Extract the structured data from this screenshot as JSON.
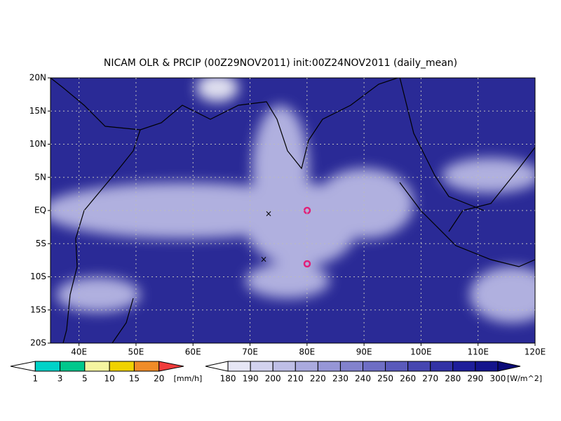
{
  "title": "NICAM OLR & PRCIP (00Z29NOV2011) init:00Z24NOV2011 (daily_mean)",
  "map": {
    "xlim": [
      35,
      120
    ],
    "ylim": [
      -20,
      20
    ],
    "xticks": [
      {
        "value": 40,
        "label": "40E"
      },
      {
        "value": 50,
        "label": "50E"
      },
      {
        "value": 60,
        "label": "60E"
      },
      {
        "value": 70,
        "label": "70E"
      },
      {
        "value": 80,
        "label": "80E"
      },
      {
        "value": 90,
        "label": "90E"
      },
      {
        "value": 100,
        "label": "100E"
      },
      {
        "value": 110,
        "label": "110E"
      },
      {
        "value": 120,
        "label": "120E"
      }
    ],
    "yticks": [
      {
        "value": 20,
        "label": "20N"
      },
      {
        "value": 15,
        "label": "15N"
      },
      {
        "value": 10,
        "label": "10N"
      },
      {
        "value": 5,
        "label": "5N"
      },
      {
        "value": 0,
        "label": "EQ"
      },
      {
        "value": -5,
        "label": "5S"
      },
      {
        "value": -10,
        "label": "10S"
      },
      {
        "value": -15,
        "label": "15S"
      },
      {
        "value": -20,
        "label": "20S"
      }
    ],
    "grid": true
  },
  "precip_colorbar": {
    "levels": [
      1,
      3,
      5,
      10,
      15,
      20
    ],
    "unit": "[mm/h]",
    "colors": [
      "#ffffff",
      "#00d2c8",
      "#00c88c",
      "#f5f5a0",
      "#f0d200",
      "#f08c28",
      "#f03c3c"
    ]
  },
  "olr_colorbar": {
    "levels": [
      180,
      190,
      200,
      210,
      220,
      230,
      240,
      250,
      260,
      270,
      280,
      290,
      300
    ],
    "unit": "[W/m^2]",
    "colors": [
      "#ffffff",
      "#e6e6f5",
      "#d2d2ee",
      "#bebee6",
      "#aaaade",
      "#9696d6",
      "#8282cc",
      "#6e6ec4",
      "#5a5abb",
      "#4646b0",
      "#3232a5",
      "#1e1e9a",
      "#14148c",
      "#0a0a78"
    ]
  }
}
